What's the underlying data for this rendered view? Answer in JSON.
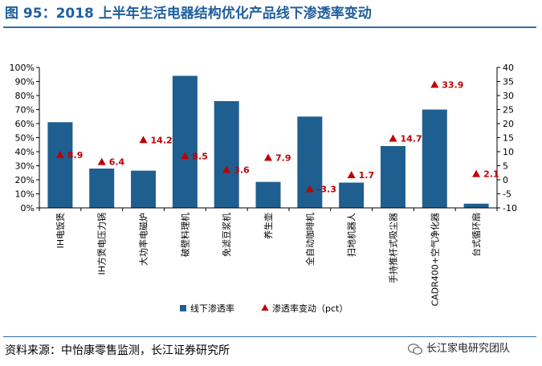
{
  "title": "图 95：2018 上半年生活电器结构优化产品线下渗透率变动",
  "source": "资料来源：中怡康零售监测，长江证券研究所",
  "watermark": "长江家电研究团队",
  "colors": {
    "bar": "#1f5f8f",
    "marker": "#c00000",
    "title": "#1f5f9f"
  },
  "chart_data": {
    "type": "bar",
    "categories": [
      "IH电饭煲",
      "IH方煲电压力锅",
      "大功率电磁炉",
      "破壁料理机",
      "免滤豆浆机",
      "养生壶",
      "全自动咖啡机",
      "扫地机器人",
      "手持推杆式吸尘器",
      "CADR400+空气净化器",
      "台式循环扇"
    ],
    "series": [
      {
        "name": "线下渗透率",
        "type": "bar",
        "axis": "left",
        "values": [
          61,
          28,
          26.5,
          94,
          76,
          18.5,
          65,
          18,
          44,
          70,
          3
        ]
      },
      {
        "name": "渗透率变动（pct）",
        "type": "scatter",
        "axis": "right",
        "values": [
          8.9,
          6.4,
          14.2,
          8.5,
          3.6,
          7.9,
          -3.3,
          1.7,
          14.7,
          33.9,
          2.1
        ]
      }
    ],
    "left_axis": {
      "ticks": [
        "0%",
        "10%",
        "20%",
        "30%",
        "40%",
        "50%",
        "60%",
        "70%",
        "80%",
        "90%",
        "100%"
      ],
      "ylim": [
        0,
        100
      ]
    },
    "right_axis": {
      "ticks": [
        "-10",
        "-5",
        "0",
        "5",
        "10",
        "15",
        "20",
        "25",
        "30",
        "35",
        "40"
      ],
      "ylim": [
        -10,
        40
      ]
    },
    "legend_placement": "bottom-center",
    "grid": false
  }
}
